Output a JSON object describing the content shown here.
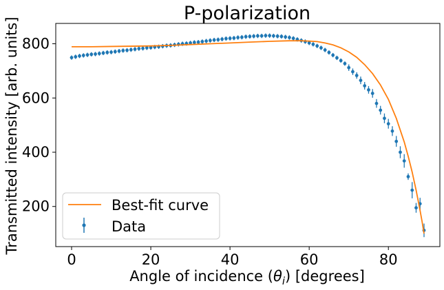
{
  "chart_data": {
    "type": "scatter",
    "title": "P-polarization",
    "xlabel_main": "Angle of incidence (",
    "xlabel_theta": "θ",
    "xlabel_sub": "i",
    "xlabel_tail": ") [degrees]",
    "ylabel": "Transmitted intensity [arb. units]",
    "xlim": [
      -4,
      93
    ],
    "ylim": [
      52,
      875
    ],
    "xticks": [
      0,
      20,
      40,
      60,
      80
    ],
    "yticks": [
      200,
      400,
      600,
      800
    ],
    "grid": false,
    "legend_position": "lower-left",
    "colors": {
      "data": "#1f77b4",
      "fit": "#ff7f0e"
    },
    "series": [
      {
        "name": "Data",
        "kind": "errorbar",
        "x": [
          0,
          1,
          2,
          3,
          4,
          5,
          6,
          7,
          8,
          9,
          10,
          11,
          12,
          13,
          14,
          15,
          16,
          17,
          18,
          19,
          20,
          21,
          22,
          23,
          24,
          25,
          26,
          27,
          28,
          29,
          30,
          31,
          32,
          33,
          34,
          35,
          36,
          37,
          38,
          39,
          40,
          41,
          42,
          43,
          44,
          45,
          46,
          47,
          48,
          49,
          50,
          51,
          52,
          53,
          54,
          55,
          56,
          57,
          58,
          59,
          60,
          61,
          62,
          63,
          64,
          65,
          66,
          67,
          68,
          69,
          70,
          71,
          72,
          73,
          74,
          75,
          76,
          77,
          78,
          79,
          80,
          81,
          82,
          83,
          84,
          85,
          86,
          87,
          88,
          89
        ],
        "y": [
          749,
          752,
          755,
          757,
          759,
          761,
          762,
          764,
          766,
          768,
          769,
          771,
          773,
          775,
          776,
          778,
          780,
          782,
          783,
          785,
          786,
          788,
          789,
          791,
          793,
          794,
          796,
          798,
          800,
          801,
          803,
          805,
          806,
          808,
          810,
          812,
          814,
          815,
          817,
          819,
          820,
          821,
          823,
          824,
          826,
          827,
          828,
          829,
          829,
          830,
          830,
          829,
          828,
          827,
          825,
          823,
          820,
          816,
          812,
          808,
          803,
          798,
          792,
          785,
          777,
          768,
          758,
          748,
          738,
          727,
          712,
          697,
          683,
          665,
          645,
          630,
          617,
          580,
          555,
          525,
          505,
          478,
          440,
          400,
          368,
          310,
          260,
          195,
          210,
          112
        ],
        "yerr": [
          8,
          8,
          8,
          8,
          8,
          8,
          8,
          8,
          8,
          8,
          8,
          8,
          8,
          8,
          8,
          8,
          8,
          8,
          8,
          8,
          8,
          8,
          8,
          8,
          8,
          8,
          8,
          8,
          8,
          8,
          8,
          8,
          8,
          8,
          8,
          8,
          8,
          8,
          8,
          8,
          8,
          8,
          8,
          8,
          8,
          8,
          8,
          8,
          8,
          8,
          8,
          8,
          8,
          8,
          8,
          8,
          8,
          8,
          8,
          8,
          8,
          8,
          8,
          8,
          8,
          8,
          8,
          8,
          8,
          8,
          12,
          12,
          12,
          14,
          14,
          14,
          16,
          16,
          16,
          18,
          18,
          18,
          20,
          22,
          25,
          12,
          30,
          18,
          22,
          25
        ]
      },
      {
        "name": "Best-fit curve",
        "kind": "line",
        "x": [
          0,
          5,
          10,
          15,
          20,
          25,
          30,
          35,
          40,
          45,
          50,
          55,
          58,
          60,
          62,
          64,
          66,
          68,
          70,
          72,
          74,
          76,
          78,
          80,
          82,
          84,
          85,
          86,
          87,
          88,
          88.5,
          89
        ],
        "y": [
          789,
          789,
          790,
          791,
          792,
          794,
          797,
          800,
          803,
          806,
          809,
          811,
          811,
          810,
          808,
          803,
          796,
          785,
          770,
          750,
          723,
          690,
          648,
          595,
          525,
          438,
          385,
          327,
          260,
          185,
          145,
          100
        ]
      }
    ]
  }
}
